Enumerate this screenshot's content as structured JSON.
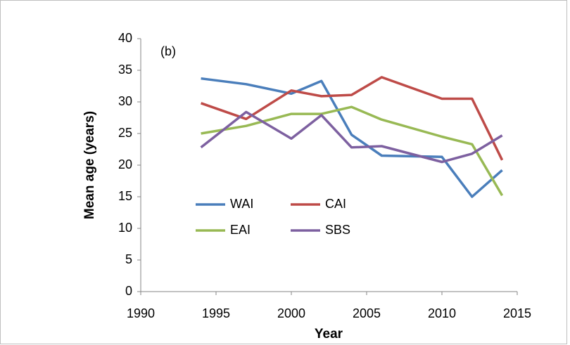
{
  "chart_data": {
    "type": "line",
    "annotation": "(b)",
    "x_label": "Year",
    "y_label": "Mean age (years)",
    "xlim": [
      1990,
      2015
    ],
    "xticks": [
      1990,
      1995,
      2000,
      2005,
      2010,
      2015
    ],
    "ylim": [
      0,
      40
    ],
    "yticks": [
      0,
      5,
      10,
      15,
      20,
      25,
      30,
      35,
      40
    ],
    "grid": false,
    "series": [
      {
        "name": "WAI",
        "color": "#4a7ebb",
        "x": [
          1994,
          1997,
          2000,
          2002,
          2004,
          2006,
          2008,
          2010,
          2012,
          2014
        ],
        "values": [
          33.7,
          32.8,
          31.3,
          33.3,
          24.8,
          21.5,
          21.4,
          21.3,
          15.0,
          19.2
        ]
      },
      {
        "name": "CAI",
        "color": "#be4b48",
        "x": [
          1994,
          1997,
          2000,
          2002,
          2004,
          2006,
          2010,
          2012,
          2014
        ],
        "values": [
          29.8,
          27.3,
          31.8,
          30.9,
          31.1,
          33.9,
          30.5,
          30.5,
          20.8
        ]
      },
      {
        "name": "EAI",
        "color": "#98b954",
        "x": [
          1994,
          1997,
          2000,
          2002,
          2004,
          2006,
          2010,
          2012,
          2014
        ],
        "values": [
          25.0,
          26.2,
          28.1,
          28.1,
          29.2,
          27.2,
          24.5,
          23.3,
          15.2
        ]
      },
      {
        "name": "SBS",
        "color": "#7d60a0",
        "x": [
          1994,
          1997,
          2000,
          2002,
          2004,
          2006,
          2010,
          2012,
          2014
        ],
        "values": [
          22.8,
          28.4,
          24.2,
          27.9,
          22.8,
          23.0,
          20.5,
          21.8,
          24.7
        ]
      }
    ]
  }
}
